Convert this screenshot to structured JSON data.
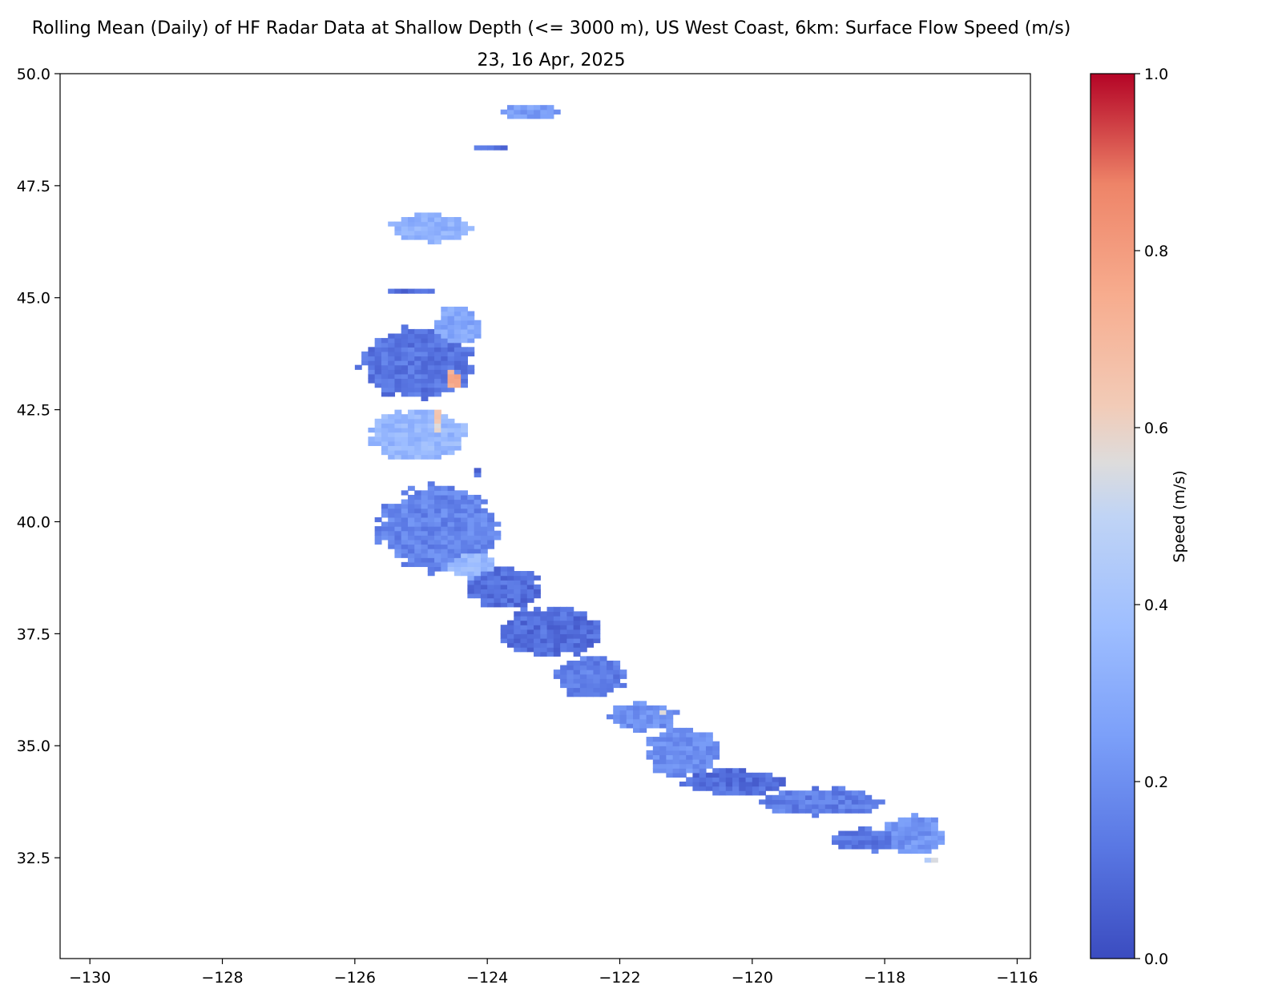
{
  "chart_data": {
    "type": "heatmap",
    "title": "Rolling Mean (Daily) of HF Radar Data at Shallow Depth (<= 3000 m), US West Coast, 6km: Surface Flow Speed (m/s)",
    "subtitle": "23, 16 Apr, 2025",
    "xlabel": "",
    "ylabel": "",
    "xlim": [
      -130.45,
      -115.8
    ],
    "ylim": [
      30.25,
      50.0
    ],
    "x_ticks": [
      -130,
      -128,
      -126,
      -124,
      -122,
      -120,
      -118,
      -116
    ],
    "x_tick_labels": [
      "−130",
      "−128",
      "−126",
      "−124",
      "−122",
      "−120",
      "−118",
      "−116"
    ],
    "y_ticks": [
      32.5,
      35.0,
      37.5,
      40.0,
      42.5,
      45.0,
      47.5,
      50.0
    ],
    "y_tick_labels": [
      "32.5",
      "35.0",
      "37.5",
      "40.0",
      "42.5",
      "45.0",
      "47.5",
      "50.0"
    ],
    "grid": false,
    "colormap": "coolwarm",
    "colorbar": {
      "label": "Speed (m/s)",
      "range": [
        0.0,
        1.0
      ],
      "ticks": [
        0.0,
        0.2,
        0.4,
        0.6,
        0.8,
        1.0
      ],
      "tick_labels": [
        "0.0",
        "0.2",
        "0.4",
        "0.6",
        "0.8",
        "1.0"
      ]
    },
    "regions": [
      {
        "name": "",
        "lon": -123.4,
        "lat": 49.1,
        "rx": 0.45,
        "ry": 0.15,
        "speed": 0.25
      },
      {
        "name": "",
        "lon": -124.0,
        "lat": 48.33,
        "rx": 0.3,
        "ry": 0.06,
        "speed": 0.1
      },
      {
        "name": "",
        "lon": -124.9,
        "lat": 46.5,
        "rx": 0.6,
        "ry": 0.3,
        "speed": 0.33
      },
      {
        "name": "",
        "lon": -125.2,
        "lat": 45.1,
        "rx": 0.35,
        "ry": 0.07,
        "speed": 0.1
      },
      {
        "name": "",
        "lon": -125.1,
        "lat": 43.5,
        "rx": 0.85,
        "ry": 0.8,
        "speed": 0.12
      },
      {
        "name": "",
        "lon": -124.5,
        "lat": 44.3,
        "rx": 0.35,
        "ry": 0.45,
        "speed": 0.28
      },
      {
        "name": "",
        "lon": -124.6,
        "lat": 43.15,
        "rx": 0.15,
        "ry": 0.25,
        "speed": 0.75
      },
      {
        "name": "",
        "lon": -125.1,
        "lat": 41.9,
        "rx": 0.75,
        "ry": 0.55,
        "speed": 0.35
      },
      {
        "name": "",
        "lon": -124.8,
        "lat": 42.1,
        "rx": 0.12,
        "ry": 0.35,
        "speed": 0.62
      },
      {
        "name": "",
        "lon": -124.2,
        "lat": 41.05,
        "rx": 0.1,
        "ry": 0.12,
        "speed": 0.1
      },
      {
        "name": "",
        "lon": -124.8,
        "lat": 39.8,
        "rx": 0.9,
        "ry": 0.95,
        "speed": 0.17
      },
      {
        "name": "",
        "lon": -124.3,
        "lat": 39.0,
        "rx": 0.35,
        "ry": 0.3,
        "speed": 0.35
      },
      {
        "name": "",
        "lon": -123.8,
        "lat": 38.5,
        "rx": 0.55,
        "ry": 0.45,
        "speed": 0.1
      },
      {
        "name": "",
        "lon": -123.1,
        "lat": 37.5,
        "rx": 0.75,
        "ry": 0.55,
        "speed": 0.1
      },
      {
        "name": "",
        "lon": -122.5,
        "lat": 36.5,
        "rx": 0.55,
        "ry": 0.45,
        "speed": 0.15
      },
      {
        "name": "",
        "lon": -121.7,
        "lat": 35.6,
        "rx": 0.5,
        "ry": 0.3,
        "speed": 0.2
      },
      {
        "name": "",
        "lon": -121.4,
        "lat": 35.7,
        "rx": 0.08,
        "ry": 0.1,
        "speed": 0.6
      },
      {
        "name": "",
        "lon": -121.1,
        "lat": 34.8,
        "rx": 0.55,
        "ry": 0.55,
        "speed": 0.2
      },
      {
        "name": "",
        "lon": -120.3,
        "lat": 34.15,
        "rx": 0.8,
        "ry": 0.28,
        "speed": 0.1
      },
      {
        "name": "",
        "lon": -119.0,
        "lat": 33.7,
        "rx": 0.9,
        "ry": 0.3,
        "speed": 0.15
      },
      {
        "name": "",
        "lon": -118.3,
        "lat": 32.85,
        "rx": 0.55,
        "ry": 0.25,
        "speed": 0.12
      },
      {
        "name": "",
        "lon": -117.6,
        "lat": 32.95,
        "rx": 0.45,
        "ry": 0.45,
        "speed": 0.22
      },
      {
        "name": "",
        "lon": -117.3,
        "lat": 32.4,
        "rx": 0.1,
        "ry": 0.08,
        "speed": 0.5
      }
    ]
  }
}
